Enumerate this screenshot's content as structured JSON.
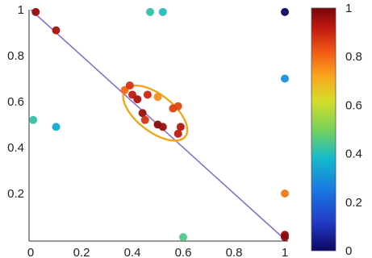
{
  "chart_data": {
    "type": "scatter",
    "xlim": [
      0,
      1
    ],
    "ylim": [
      0,
      1
    ],
    "x_ticks": [
      {
        "value": 0,
        "label": "0"
      },
      {
        "value": 0.2,
        "label": "0.2"
      },
      {
        "value": 0.4,
        "label": "0.4"
      },
      {
        "value": 0.6,
        "label": "0.6"
      },
      {
        "value": 0.8,
        "label": "0.8"
      },
      {
        "value": 1,
        "label": "1"
      }
    ],
    "y_ticks": [
      {
        "value": 0.2,
        "label": "0.2"
      },
      {
        "value": 0.4,
        "label": "0.4"
      },
      {
        "value": 0.6,
        "label": "0.6"
      },
      {
        "value": 0.8,
        "label": "0.8"
      },
      {
        "value": 1,
        "label": "1"
      }
    ],
    "colorbar": {
      "range": [
        0,
        1
      ],
      "ticks": [
        {
          "value": 0,
          "label": "0"
        },
        {
          "value": 0.2,
          "label": "0.2"
        },
        {
          "value": 0.4,
          "label": "0.4"
        },
        {
          "value": 0.6,
          "label": "0.6"
        },
        {
          "value": 0.8,
          "label": "0.8"
        },
        {
          "value": 1,
          "label": "1"
        }
      ]
    },
    "reference_line": {
      "x": [
        0,
        1
      ],
      "y": [
        1,
        0
      ],
      "color": "#8a6fc9"
    },
    "ellipse": {
      "center": [
        0.49,
        0.55
      ],
      "rx": 0.15,
      "ry": 0.08,
      "angle_deg": 38,
      "color": "#f0a818"
    },
    "points": [
      {
        "x": 0.02,
        "y": 0.99,
        "c": 0.97
      },
      {
        "x": 0.1,
        "y": 0.91,
        "c": 0.95
      },
      {
        "x": 0.47,
        "y": 0.99,
        "c": 0.42
      },
      {
        "x": 0.52,
        "y": 0.99,
        "c": 0.4
      },
      {
        "x": 1.0,
        "y": 0.99,
        "c": 0.0
      },
      {
        "x": 0.01,
        "y": 0.52,
        "c": 0.42
      },
      {
        "x": 0.1,
        "y": 0.49,
        "c": 0.35
      },
      {
        "x": 1.0,
        "y": 0.7,
        "c": 0.3
      },
      {
        "x": 0.37,
        "y": 0.65,
        "c": 0.8
      },
      {
        "x": 0.39,
        "y": 0.67,
        "c": 0.88
      },
      {
        "x": 0.4,
        "y": 0.63,
        "c": 0.92
      },
      {
        "x": 0.42,
        "y": 0.61,
        "c": 0.94
      },
      {
        "x": 0.46,
        "y": 0.63,
        "c": 0.9
      },
      {
        "x": 0.44,
        "y": 0.55,
        "c": 0.96
      },
      {
        "x": 0.45,
        "y": 0.52,
        "c": 0.88
      },
      {
        "x": 0.5,
        "y": 0.62,
        "c": 0.75
      },
      {
        "x": 0.5,
        "y": 0.5,
        "c": 0.98
      },
      {
        "x": 0.52,
        "y": 0.49,
        "c": 0.96
      },
      {
        "x": 0.56,
        "y": 0.57,
        "c": 0.86
      },
      {
        "x": 0.58,
        "y": 0.58,
        "c": 0.85
      },
      {
        "x": 0.59,
        "y": 0.49,
        "c": 0.93
      },
      {
        "x": 0.58,
        "y": 0.46,
        "c": 0.92
      },
      {
        "x": 1.0,
        "y": 0.2,
        "c": 0.78
      },
      {
        "x": 0.6,
        "y": 0.01,
        "c": 0.45
      },
      {
        "x": 1.0,
        "y": 0.02,
        "c": 0.97
      },
      {
        "x": 1.0,
        "y": 0.01,
        "c": 0.98
      }
    ]
  }
}
